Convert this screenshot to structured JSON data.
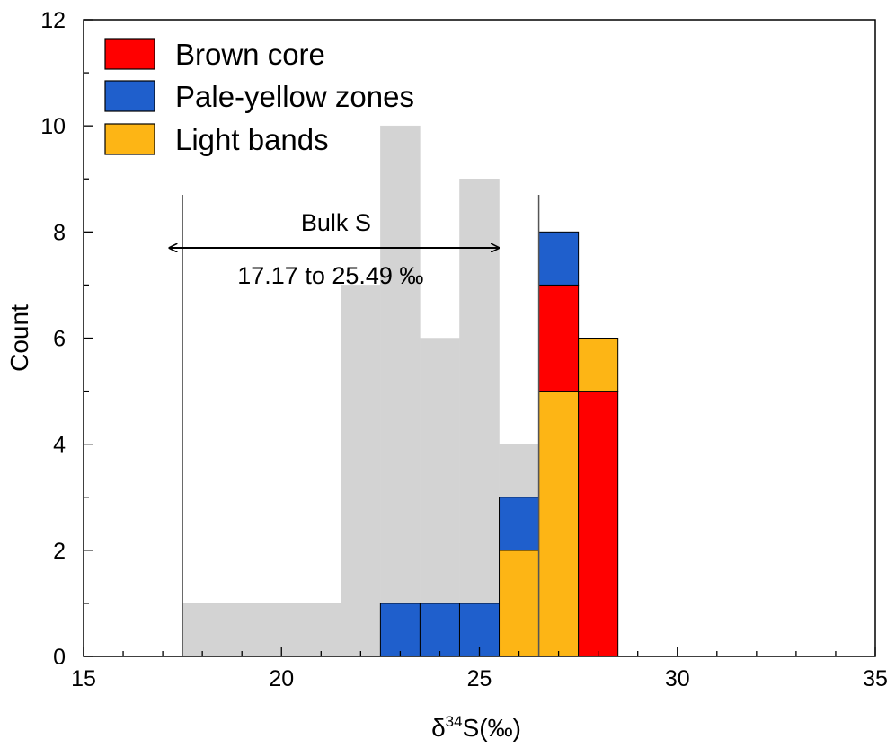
{
  "chart_data": {
    "type": "bar",
    "subtype": "stacked-histogram",
    "title": "",
    "xlabel_prefix": "δ",
    "xlabel_sup": "34",
    "xlabel_suffix": "S(‰)",
    "ylabel": "Count",
    "xlim": [
      15,
      35
    ],
    "ylim": [
      0,
      12
    ],
    "x_ticks": [
      15,
      20,
      25,
      30,
      35
    ],
    "y_ticks": [
      0,
      2,
      4,
      6,
      8,
      10,
      12
    ],
    "bin_width": 1,
    "background_bulk": {
      "color": "#d3d3d3",
      "bins": [
        {
          "x0": 17.5,
          "x1": 21.5,
          "count": 1
        },
        {
          "x0": 21.5,
          "x1": 22.5,
          "count": 7
        },
        {
          "x0": 22.5,
          "x1": 23.5,
          "count": 10
        },
        {
          "x0": 23.5,
          "x1": 24.5,
          "count": 6
        },
        {
          "x0": 24.5,
          "x1": 25.5,
          "count": 9
        },
        {
          "x0": 25.5,
          "x1": 26.5,
          "count": 4
        }
      ]
    },
    "bin_lefts": [
      22.5,
      23.5,
      24.5,
      25.5,
      26.5,
      27.5
    ],
    "series": [
      {
        "name": "Light bands",
        "color": "#fdb515",
        "values": [
          0,
          0,
          0,
          2,
          5,
          1
        ]
      },
      {
        "name": "Pale-yellow zones",
        "color": "#1f5fcc",
        "values": [
          1,
          1,
          1,
          1,
          1,
          0
        ]
      },
      {
        "name": "Brown core",
        "color": "#ff0000",
        "values": [
          0,
          0,
          0,
          0,
          2,
          5
        ]
      }
    ],
    "stack_order_bottom_to_top": [
      [
        "Light bands",
        "Pale-yellow zones"
      ],
      [
        "Light bands",
        "Pale-yellow zones"
      ],
      [
        "Light bands",
        "Pale-yellow zones"
      ],
      [
        "Light bands",
        "Pale-yellow zones"
      ],
      [
        "Light bands",
        "Brown core",
        "Pale-yellow zones"
      ],
      [
        "Brown core",
        "Light bands"
      ]
    ],
    "legend": {
      "placement": "top-left",
      "entries": [
        {
          "label": "Brown core",
          "color": "#ff0000"
        },
        {
          "label": "Pale-yellow zones",
          "color": "#1f5fcc"
        },
        {
          "label": "Light bands",
          "color": "#fdb515"
        }
      ]
    },
    "annotation": {
      "title": "Bulk S",
      "range_text": "17.17 to 25.49 ‰",
      "range_x": [
        17.17,
        25.49
      ],
      "arrow_y": 7.7,
      "vertical_lines_x": [
        17.5,
        26.5
      ],
      "vertical_lines_top": 8.7
    }
  }
}
